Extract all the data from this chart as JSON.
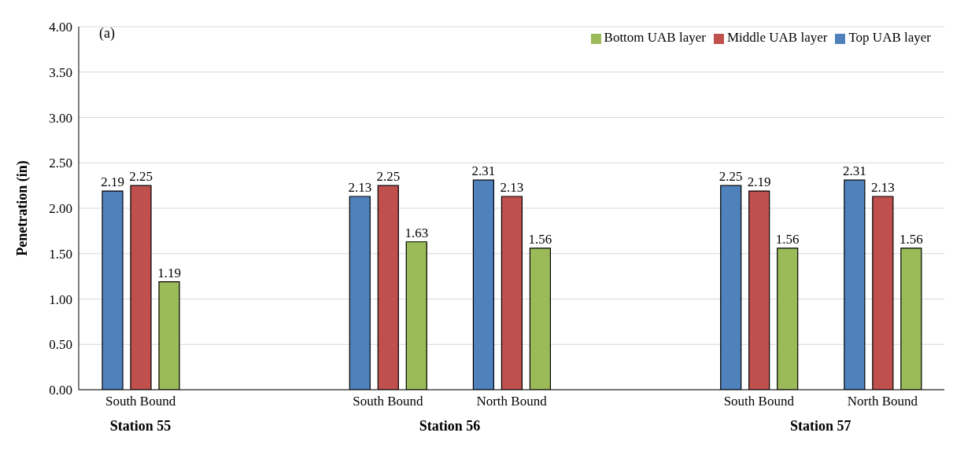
{
  "chart_data": {
    "type": "bar",
    "title": "(a)",
    "ylabel": "Penetration (in)",
    "categories": [
      "South Bound",
      null,
      "South Bound",
      "North Bound",
      null,
      "South Bound",
      "North Bound"
    ],
    "series": [
      {
        "name": "Top UAB layer",
        "color": "#4f81bd",
        "values": [
          2.19,
          null,
          2.13,
          2.31,
          null,
          2.25,
          2.31
        ]
      },
      {
        "name": "Middle UAB layer",
        "color": "#c0504d",
        "values": [
          2.25,
          null,
          2.25,
          2.13,
          null,
          2.19,
          2.13
        ]
      },
      {
        "name": "Bottom UAB layer",
        "color": "#9bbb59",
        "values": [
          1.19,
          null,
          1.63,
          1.56,
          null,
          1.56,
          1.56
        ]
      }
    ],
    "ylim": [
      0,
      4
    ],
    "yticks": [
      {
        "value": 0,
        "label": "0.00"
      },
      {
        "value": 0.5,
        "label": "0.50"
      },
      {
        "value": 1,
        "label": "1.00"
      },
      {
        "value": 1.5,
        "label": "1.50"
      },
      {
        "value": 2,
        "label": "2.00"
      },
      {
        "value": 2.5,
        "label": "2.50"
      },
      {
        "value": 3,
        "label": "3.00"
      },
      {
        "value": 3.5,
        "label": "3.50"
      },
      {
        "value": 4,
        "label": "4.00"
      }
    ],
    "annotations": [
      "Station 55",
      "Station 56",
      "Station 57"
    ],
    "grid": "y",
    "legend": "top right",
    "data_labels": true
  }
}
